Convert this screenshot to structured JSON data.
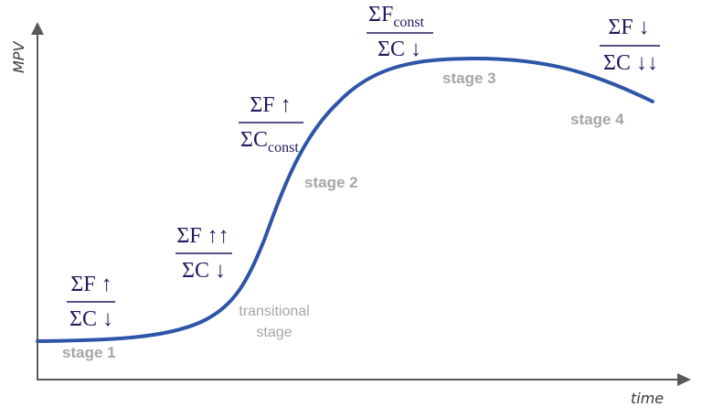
{
  "axes": {
    "y_label": "MPV",
    "x_label": "time"
  },
  "stages": {
    "stage1": "stage 1",
    "transitional_line1": "transitional",
    "transitional_line2": "stage",
    "stage2": "stage 2",
    "stage3": "stage 3",
    "stage4": "stage 4"
  },
  "fractions": {
    "f1": {
      "num": "ΣF ↑",
      "den": "ΣC ↓"
    },
    "f2": {
      "num": "ΣF ↑↑",
      "den": "ΣC ↓"
    },
    "f3": {
      "num": "ΣF ↑",
      "den_main": "ΣC",
      "den_sub": "const"
    },
    "f4": {
      "num_main": "ΣF",
      "num_sub": "const",
      "den": "ΣC ↓"
    },
    "f5": {
      "num": "ΣF ↓",
      "den": "ΣC ↓↓"
    }
  },
  "colors": {
    "curve": "#2f55a8",
    "axis": "#595959",
    "fraction_text": "#1f1b5e",
    "stage_text": "#a6a6a6"
  }
}
